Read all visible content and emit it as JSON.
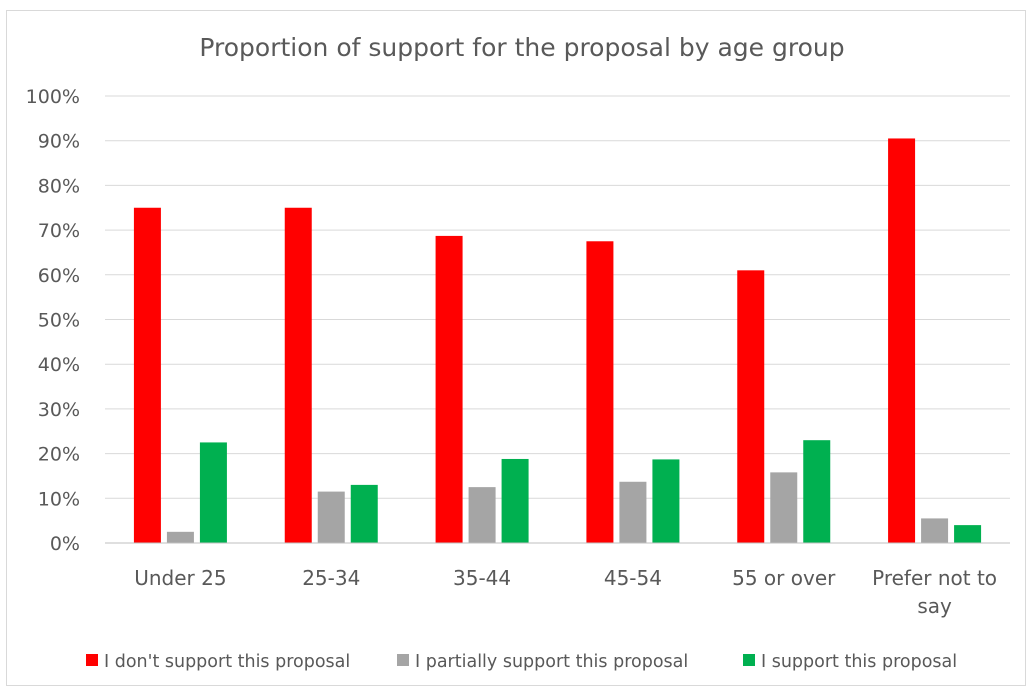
{
  "chart_data": {
    "type": "bar",
    "title": "Proportion of support for the proposal by age group",
    "xlabel": "",
    "ylabel": "",
    "ylim": [
      0,
      100
    ],
    "ytick_labels": [
      "0%",
      "10%",
      "20%",
      "30%",
      "40%",
      "50%",
      "60%",
      "70%",
      "80%",
      "90%",
      "100%"
    ],
    "categories": [
      "Under 25",
      "25-34",
      "35-44",
      "45-54",
      "55 or over",
      "Prefer not to say"
    ],
    "category_lines": [
      [
        "Under 25"
      ],
      [
        "25-34"
      ],
      [
        "35-44"
      ],
      [
        "45-54"
      ],
      [
        "55 or over"
      ],
      [
        "Prefer not to",
        "say"
      ]
    ],
    "series": [
      {
        "name": "I don't support this proposal",
        "color": "#ff0000",
        "values": [
          75,
          75,
          68.7,
          67.5,
          61,
          90.5
        ]
      },
      {
        "name": "I partially support this proposal",
        "color": "#a5a5a5",
        "values": [
          2.5,
          11.5,
          12.5,
          13.7,
          15.8,
          5.5
        ]
      },
      {
        "name": "I support this proposal",
        "color": "#00b050",
        "values": [
          22.5,
          13,
          18.8,
          18.7,
          23,
          4
        ]
      }
    ],
    "grid": true,
    "legend_position": "bottom"
  }
}
